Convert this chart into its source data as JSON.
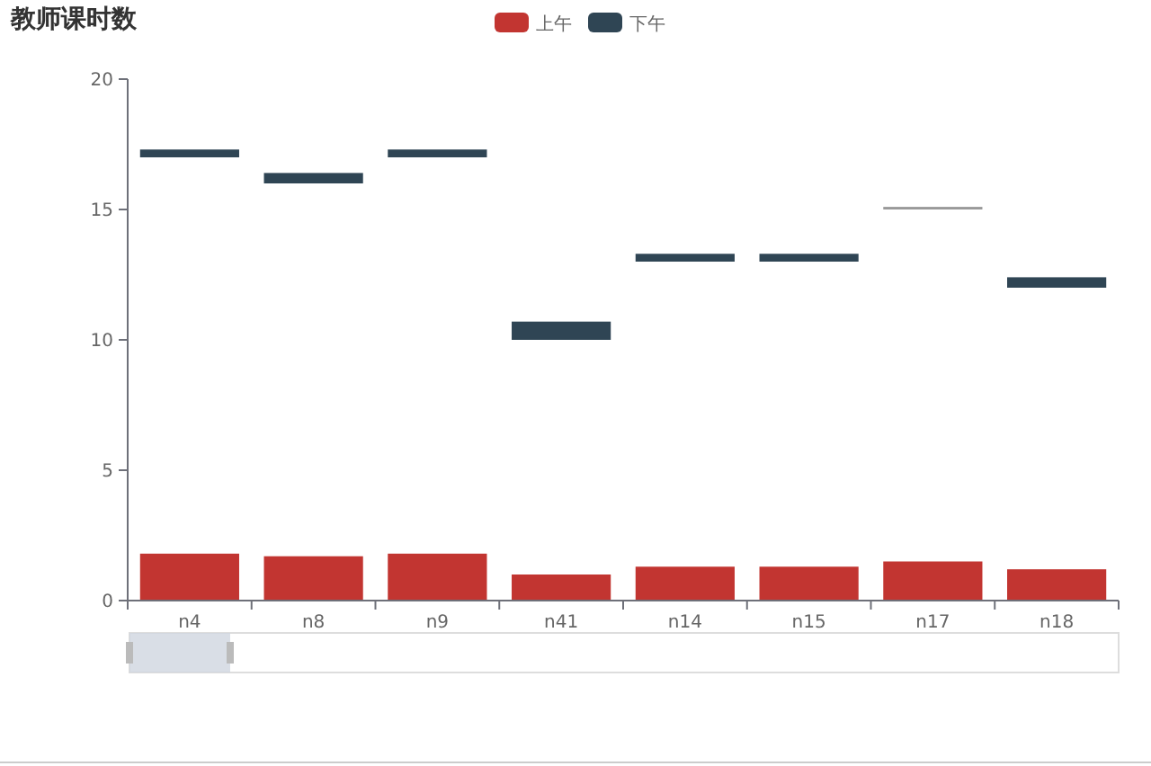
{
  "chart_data": {
    "type": "bar",
    "title": "教师课时数",
    "categories": [
      "n4",
      "n8",
      "n9",
      "n41",
      "n14",
      "n15",
      "n17",
      "n18"
    ],
    "series": [
      {
        "name": "上午",
        "color": "#c23531",
        "base": [
          0,
          0,
          0,
          0,
          0,
          0,
          0,
          0
        ],
        "values": [
          1.8,
          1.7,
          1.8,
          1.0,
          1.3,
          1.3,
          1.5,
          1.2
        ]
      },
      {
        "name": "下午",
        "color": "#2f4554",
        "colors": [
          "#2f4554",
          "#2f4554",
          "#2f4554",
          "#2f4554",
          "#2f4554",
          "#2f4554",
          "#999999",
          "#2f4554"
        ],
        "base": [
          17,
          16,
          17,
          10,
          13,
          13,
          15,
          12
        ],
        "values": [
          0.3,
          0.4,
          0.3,
          0.7,
          0.3,
          0.3,
          0.1,
          0.4
        ]
      }
    ],
    "ylim": [
      0,
      20
    ],
    "yticks": [
      0,
      5,
      10,
      15,
      20
    ],
    "grid": false,
    "legend": "top"
  }
}
